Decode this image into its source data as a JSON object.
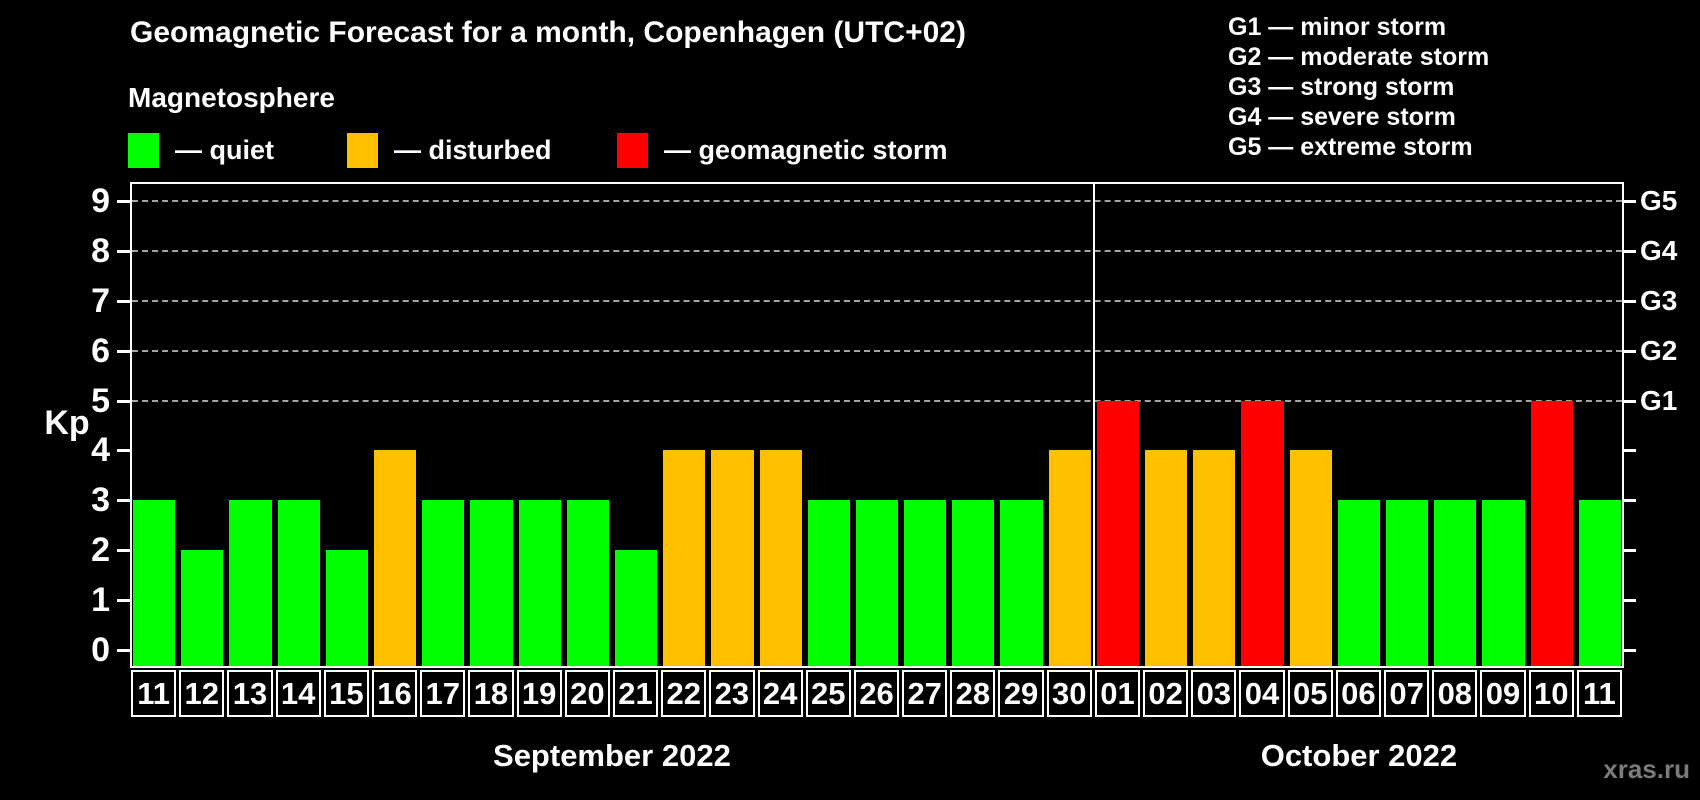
{
  "title": "Geomagnetic Forecast for a month, Copenhagen (UTC+02)",
  "subtitle": "Magnetosphere",
  "kp_legend": [
    {
      "label": "— quiet",
      "status": "quiet",
      "color": "#00ff00"
    },
    {
      "label": "— disturbed",
      "status": "disturbed",
      "color": "#ffc000"
    },
    {
      "label": "— geomagnetic storm",
      "status": "storm",
      "color": "#ff0000"
    }
  ],
  "g_legend": [
    "G1 — minor storm",
    "G2 — moderate storm",
    "G3 — strong storm",
    "G4 — severe storm",
    "G5 — extreme storm"
  ],
  "watermark": "xras.ru",
  "colors": {
    "quiet": "#00ff00",
    "disturbed": "#ffc000",
    "storm": "#ff0000",
    "grid": "#a5a5a5",
    "axis": "#ffffff",
    "background": "#000000"
  },
  "chart_data": {
    "type": "bar",
    "title": "Geomagnetic Forecast for a month, Copenhagen (UTC+02)",
    "ylabel": "Kp",
    "ylim": [
      -0.37,
      9.39
    ],
    "yticks": [
      0,
      1,
      2,
      3,
      4,
      5,
      6,
      7,
      8,
      9
    ],
    "gridlines": [
      5,
      6,
      7,
      8,
      9
    ],
    "grid_on": true,
    "legend_position": "top-left",
    "right_axis_labels": [
      {
        "value": 5,
        "label": "G1"
      },
      {
        "value": 6,
        "label": "G2"
      },
      {
        "value": 7,
        "label": "G3"
      },
      {
        "value": 8,
        "label": "G4"
      },
      {
        "value": 9,
        "label": "G5"
      }
    ],
    "months": [
      {
        "label": "September 2022",
        "bars": [
          {
            "day": "11",
            "kp": 3,
            "status": "quiet"
          },
          {
            "day": "12",
            "kp": 2,
            "status": "quiet"
          },
          {
            "day": "13",
            "kp": 3,
            "status": "quiet"
          },
          {
            "day": "14",
            "kp": 3,
            "status": "quiet"
          },
          {
            "day": "15",
            "kp": 2,
            "status": "quiet"
          },
          {
            "day": "16",
            "kp": 4,
            "status": "disturbed"
          },
          {
            "day": "17",
            "kp": 3,
            "status": "quiet"
          },
          {
            "day": "18",
            "kp": 3,
            "status": "quiet"
          },
          {
            "day": "19",
            "kp": 3,
            "status": "quiet"
          },
          {
            "day": "20",
            "kp": 3,
            "status": "quiet"
          },
          {
            "day": "21",
            "kp": 2,
            "status": "quiet"
          },
          {
            "day": "22",
            "kp": 4,
            "status": "disturbed"
          },
          {
            "day": "23",
            "kp": 4,
            "status": "disturbed"
          },
          {
            "day": "24",
            "kp": 4,
            "status": "disturbed"
          },
          {
            "day": "25",
            "kp": 3,
            "status": "quiet"
          },
          {
            "day": "26",
            "kp": 3,
            "status": "quiet"
          },
          {
            "day": "27",
            "kp": 3,
            "status": "quiet"
          },
          {
            "day": "28",
            "kp": 3,
            "status": "quiet"
          },
          {
            "day": "29",
            "kp": 3,
            "status": "quiet"
          },
          {
            "day": "30",
            "kp": 4,
            "status": "disturbed"
          }
        ]
      },
      {
        "label": "October 2022",
        "bars": [
          {
            "day": "01",
            "kp": 5,
            "status": "storm"
          },
          {
            "day": "02",
            "kp": 4,
            "status": "disturbed"
          },
          {
            "day": "03",
            "kp": 4,
            "status": "disturbed"
          },
          {
            "day": "04",
            "kp": 5,
            "status": "storm"
          },
          {
            "day": "05",
            "kp": 4,
            "status": "disturbed"
          },
          {
            "day": "06",
            "kp": 3,
            "status": "quiet"
          },
          {
            "day": "07",
            "kp": 3,
            "status": "quiet"
          },
          {
            "day": "08",
            "kp": 3,
            "status": "quiet"
          },
          {
            "day": "09",
            "kp": 3,
            "status": "quiet"
          },
          {
            "day": "10",
            "kp": 5,
            "status": "storm"
          },
          {
            "day": "11",
            "kp": 3,
            "status": "quiet"
          }
        ]
      }
    ]
  }
}
